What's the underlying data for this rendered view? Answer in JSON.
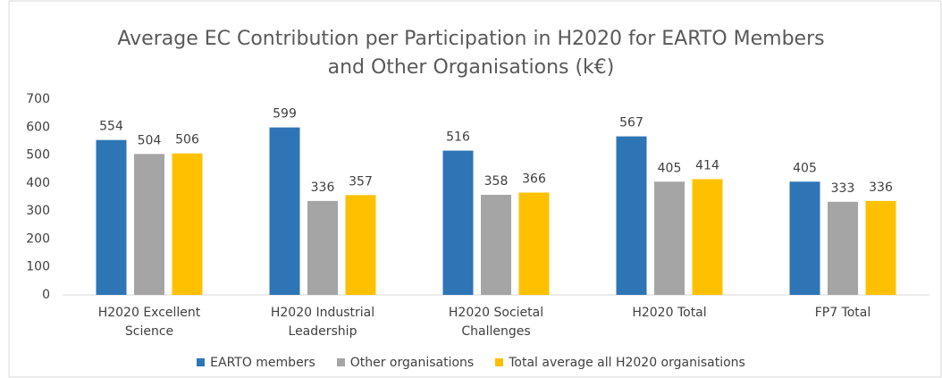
{
  "chart_data": {
    "type": "bar",
    "title": "Average EC Contribution per Participation in H2020 for EARTO Members and Other Organisations (k€)",
    "categories": [
      "H2020 Excellent Science",
      "H2020 Industrial Leadership",
      "H2020 Societal Challenges",
      "H2020 Total",
      "FP7 Total"
    ],
    "series": [
      {
        "name": "EARTO members",
        "color": "#2e75b6",
        "values": [
          554,
          599,
          516,
          567,
          405
        ]
      },
      {
        "name": "Other organisations",
        "color": "#a5a5a5",
        "values": [
          504,
          336,
          358,
          405,
          333
        ]
      },
      {
        "name": "Total average all H2020 organisations",
        "color": "#ffc000",
        "values": [
          506,
          357,
          366,
          414,
          336
        ]
      }
    ],
    "ylim": [
      0,
      700
    ],
    "yticks": [
      0,
      100,
      200,
      300,
      400,
      500,
      600,
      700
    ],
    "grid": false,
    "legend": "bottom"
  }
}
